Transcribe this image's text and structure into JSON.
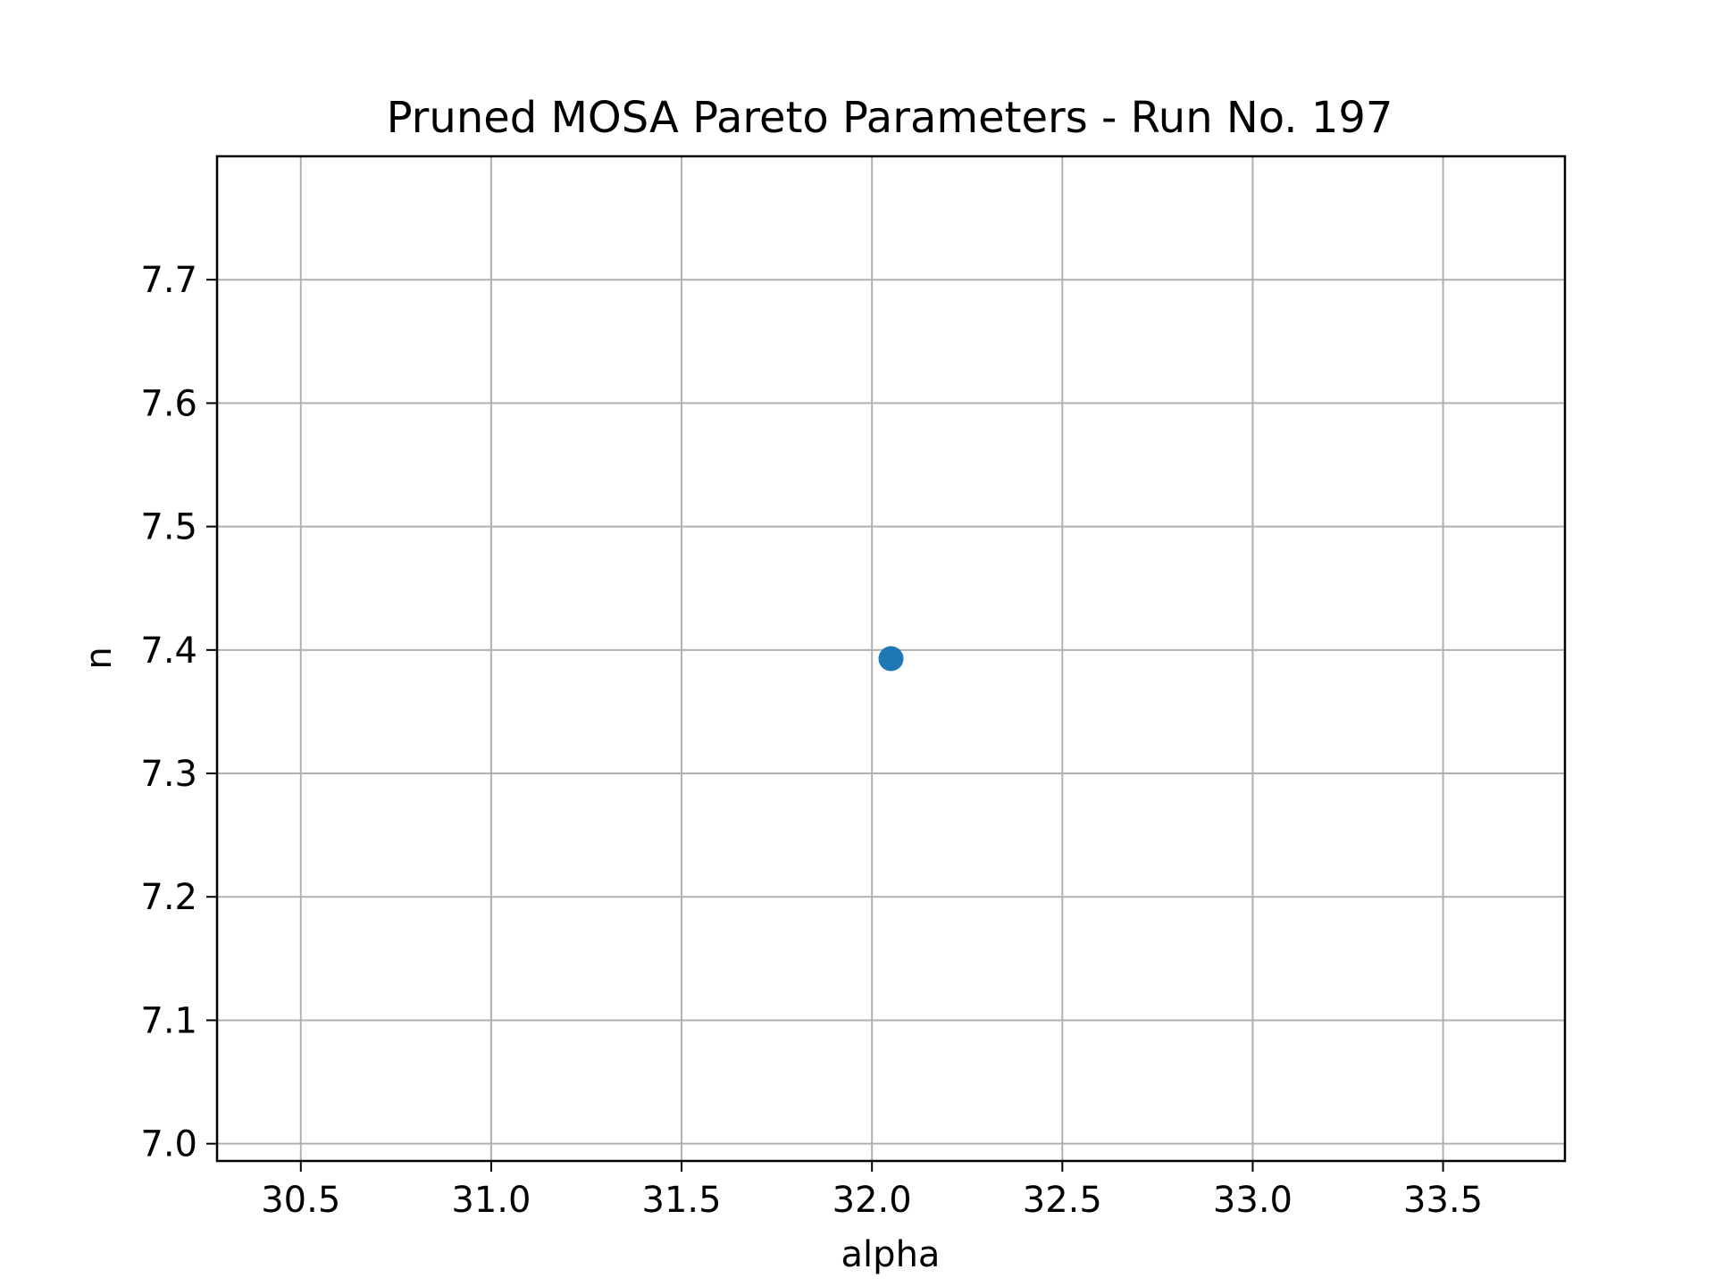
{
  "chart_data": {
    "type": "scatter",
    "title": "Pruned MOSA Pareto Parameters - Run No. 197",
    "xlabel": "alpha",
    "ylabel": "n",
    "xlim": [
      30.28,
      33.82
    ],
    "ylim": [
      6.986,
      7.8
    ],
    "xticks": [
      30.5,
      31.0,
      31.5,
      32.0,
      32.5,
      33.0,
      33.5
    ],
    "xtick_labels": [
      "30.5",
      "31.0",
      "31.5",
      "32.0",
      "32.5",
      "33.0",
      "33.5"
    ],
    "yticks": [
      7.0,
      7.1,
      7.2,
      7.3,
      7.4,
      7.5,
      7.6,
      7.7
    ],
    "ytick_labels": [
      "7.0",
      "7.1",
      "7.2",
      "7.3",
      "7.4",
      "7.5",
      "7.6",
      "7.7"
    ],
    "grid": true,
    "series": [
      {
        "color": "#1f77b4",
        "points": [
          {
            "x": 32.05,
            "y": 7.393
          }
        ]
      }
    ]
  }
}
